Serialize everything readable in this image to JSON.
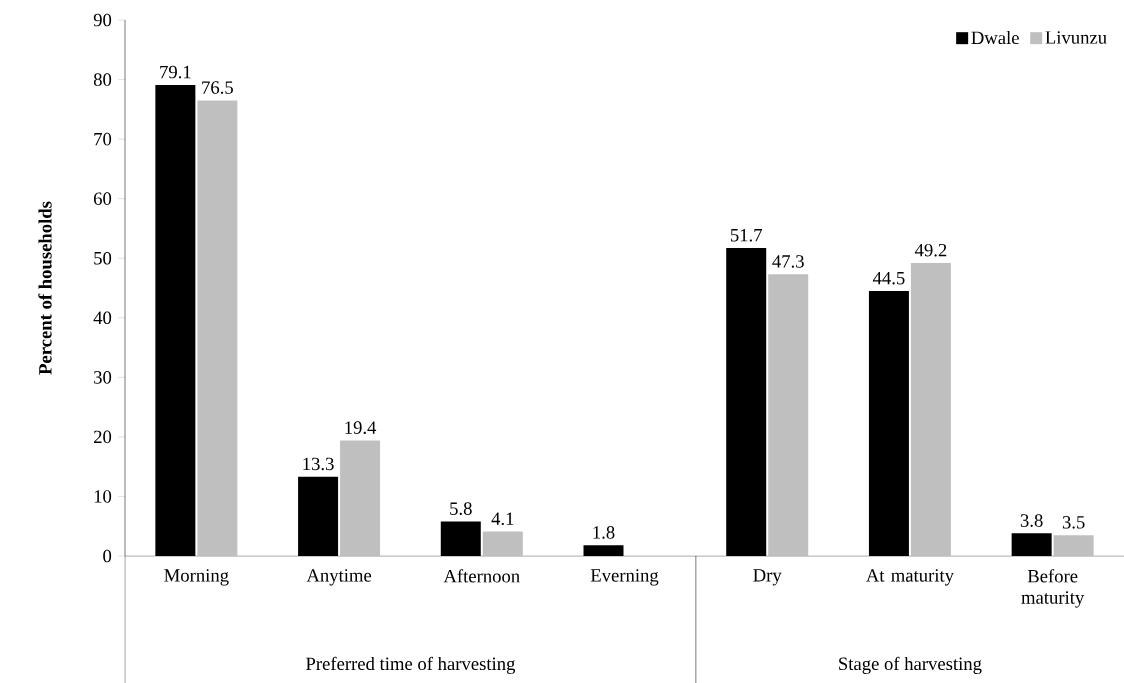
{
  "chart_data": {
    "type": "bar",
    "ylabel": "Percent of households",
    "categories": [
      "Morning",
      "Anytime",
      "Afternoon",
      "Everning",
      "Dry",
      "At maturity",
      "Before maturity"
    ],
    "series": [
      {
        "name": "Dwale",
        "color": "#000000",
        "values": [
          79.1,
          13.3,
          5.8,
          1.8,
          51.7,
          44.5,
          3.8
        ]
      },
      {
        "name": "Livunzu",
        "color": "#bfbfbf",
        "values": [
          76.5,
          19.4,
          4.1,
          null,
          47.3,
          49.2,
          3.5
        ]
      }
    ],
    "ylim": [
      0,
      90
    ],
    "yticks": [
      0,
      10,
      20,
      30,
      40,
      50,
      60,
      70,
      80,
      90
    ],
    "data_labels": true,
    "legend": "top right",
    "annotations": [
      "Preferred time of harvesting",
      "Stage of harvesting"
    ]
  }
}
